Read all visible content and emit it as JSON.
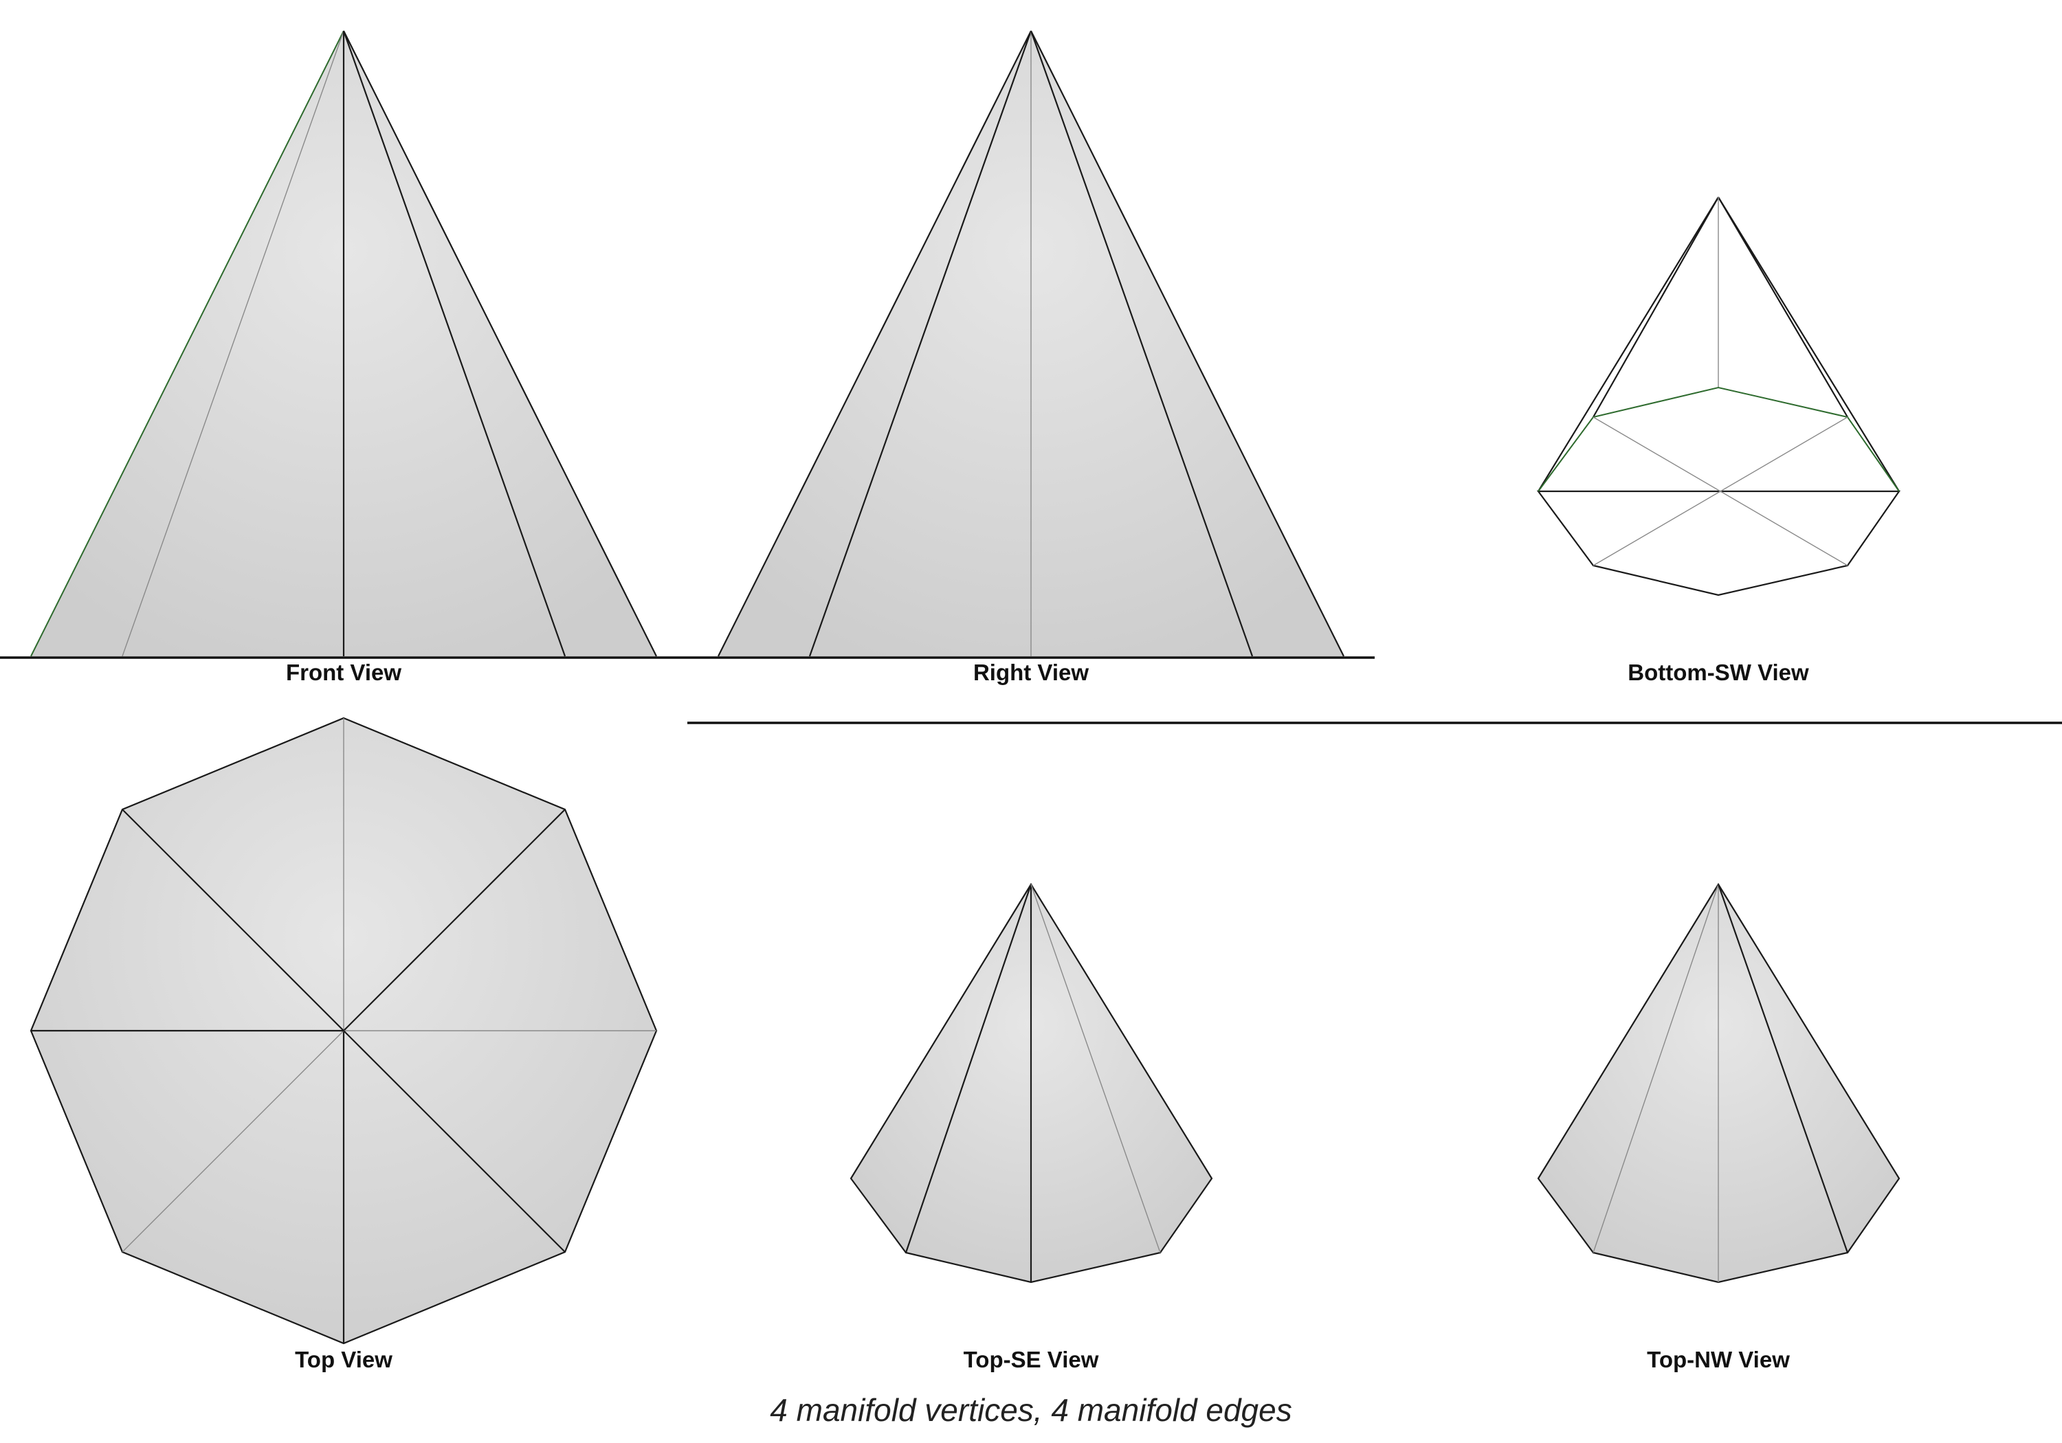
{
  "views": {
    "front": "Front View",
    "right": "Right View",
    "bottom_sw": "Bottom-SW View",
    "top": "Top View",
    "top_se": "Top-SE View",
    "top_nw": "Top-NW View"
  },
  "caption": "4 manifold vertices, 4 manifold edges",
  "colors": {
    "face_fill": "#d6d6d6",
    "edge": "#1a1a1a",
    "hidden_edge": "#8a8a8a",
    "highlight_edge": "#2e6b2e"
  }
}
